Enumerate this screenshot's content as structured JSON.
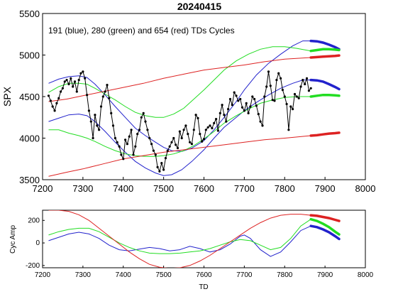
{
  "chart_data": [
    {
      "type": "line",
      "title": "20240415",
      "annotation": "191 (blue), 280 (green) and 654 (red) TDs Cycles",
      "xlabel": "",
      "ylabel": "SPX",
      "xlim": [
        7200,
        8000
      ],
      "ylim": [
        3500,
        5500
      ],
      "xticks": [
        "7200",
        "7300",
        "7400",
        "7500",
        "7600",
        "7700",
        "7800",
        "7900",
        "8000"
      ],
      "yticks": [
        "3500",
        "4000",
        "4500",
        "5000",
        "5500"
      ],
      "grid": false,
      "price": {
        "color": "#000000",
        "x": [
          7215,
          7220,
          7225,
          7230,
          7235,
          7240,
          7245,
          7250,
          7255,
          7260,
          7265,
          7270,
          7275,
          7280,
          7285,
          7290,
          7295,
          7300,
          7305,
          7310,
          7315,
          7320,
          7325,
          7330,
          7335,
          7340,
          7345,
          7350,
          7355,
          7360,
          7365,
          7370,
          7375,
          7380,
          7385,
          7390,
          7395,
          7400,
          7405,
          7410,
          7415,
          7420,
          7425,
          7430,
          7435,
          7440,
          7445,
          7450,
          7455,
          7460,
          7465,
          7470,
          7475,
          7480,
          7485,
          7490,
          7495,
          7500,
          7505,
          7510,
          7515,
          7520,
          7525,
          7530,
          7535,
          7540,
          7545,
          7550,
          7555,
          7560,
          7565,
          7570,
          7575,
          7580,
          7585,
          7590,
          7595,
          7600,
          7605,
          7610,
          7615,
          7620,
          7625,
          7630,
          7635,
          7640,
          7645,
          7650,
          7655,
          7660,
          7665,
          7670,
          7675,
          7680,
          7685,
          7690,
          7695,
          7700,
          7705,
          7710,
          7715,
          7720,
          7725,
          7730,
          7735,
          7740,
          7745,
          7750,
          7755,
          7760,
          7765,
          7770,
          7775,
          7780,
          7785,
          7790,
          7795,
          7800,
          7805,
          7810,
          7815,
          7820,
          7825,
          7830,
          7835,
          7840,
          7845,
          7850,
          7855,
          7860,
          7865
        ],
        "y": [
          4510,
          4450,
          4380,
          4330,
          4420,
          4480,
          4560,
          4600,
          4680,
          4700,
          4650,
          4720,
          4620,
          4680,
          4560,
          4700,
          4780,
          4800,
          4720,
          4520,
          4330,
          4200,
          4000,
          4280,
          4150,
          4100,
          4380,
          4500,
          4560,
          4640,
          4480,
          4300,
          4150,
          4000,
          3950,
          3900,
          3800,
          3750,
          3980,
          3930,
          4020,
          4100,
          3800,
          3900,
          4050,
          4100,
          4250,
          4300,
          4200,
          4100,
          4000,
          3930,
          3850,
          3800,
          3650,
          3600,
          3700,
          3620,
          3760,
          3850,
          3900,
          3950,
          4000,
          3920,
          3880,
          4080,
          4000,
          4100,
          4150,
          4050,
          3950,
          3930,
          4100,
          4280,
          4240,
          4050,
          3960,
          3990,
          4100,
          4130,
          4150,
          4120,
          4180,
          4230,
          4090,
          4300,
          4400,
          4280,
          4200,
          4350,
          4470,
          4400,
          4550,
          4510,
          4450,
          4470,
          4370,
          4330,
          4420,
          4300,
          4380,
          4500,
          4470,
          4390,
          4290,
          4200,
          4150,
          4500,
          4620,
          4800,
          4630,
          4460,
          4450,
          4700,
          4780,
          4720,
          4580,
          4500,
          4410,
          4100,
          4380,
          4350,
          4530,
          4500,
          4480,
          4620,
          4700,
          4650,
          4720,
          4570,
          4600
        ]
      },
      "series": [
        {
          "color": "#2222cc",
          "x": [
            7215,
            7240,
            7265,
            7290,
            7310,
            7330,
            7355,
            7380,
            7405,
            7430,
            7455,
            7480,
            7500,
            7520,
            7545,
            7570,
            7600,
            7625,
            7650,
            7680,
            7700,
            7730,
            7760,
            7790,
            7820,
            7845,
            7865
          ],
          "y": [
            4660,
            4710,
            4740,
            4750,
            4730,
            4650,
            4520,
            4380,
            4250,
            4120,
            4030,
            3950,
            3890,
            3850,
            3840,
            3880,
            3970,
            4100,
            4250,
            4440,
            4580,
            4760,
            4900,
            5010,
            5110,
            5170,
            5170
          ]
        },
        {
          "color": "#2222cc",
          "x": [
            7215,
            7240,
            7265,
            7290,
            7310,
            7330,
            7355,
            7380,
            7405,
            7430,
            7455,
            7480,
            7500,
            7520,
            7545,
            7570,
            7600,
            7625,
            7650,
            7680,
            7700,
            7730,
            7760,
            7790,
            7820,
            7845,
            7865
          ],
          "y": [
            4200,
            4240,
            4280,
            4290,
            4270,
            4200,
            4080,
            3950,
            3830,
            3720,
            3640,
            3580,
            3550,
            3560,
            3620,
            3720,
            3860,
            4000,
            4130,
            4250,
            4330,
            4430,
            4520,
            4600,
            4660,
            4700,
            4700
          ]
        },
        {
          "color": "#22dd22",
          "x": [
            7215,
            7240,
            7265,
            7290,
            7310,
            7330,
            7355,
            7380,
            7405,
            7430,
            7455,
            7480,
            7500,
            7525,
            7550,
            7575,
            7600,
            7625,
            7650,
            7680,
            7710,
            7740,
            7770,
            7800,
            7830,
            7865
          ],
          "y": [
            4550,
            4620,
            4660,
            4660,
            4650,
            4600,
            4530,
            4460,
            4380,
            4310,
            4270,
            4250,
            4250,
            4290,
            4360,
            4470,
            4580,
            4700,
            4820,
            4930,
            5010,
            5070,
            5100,
            5100,
            5080,
            5050
          ]
        },
        {
          "color": "#22dd22",
          "x": [
            7215,
            7240,
            7265,
            7290,
            7310,
            7330,
            7355,
            7380,
            7405,
            7430,
            7455,
            7480,
            7500,
            7525,
            7550,
            7575,
            7600,
            7625,
            7650,
            7680,
            7710,
            7740,
            7770,
            7800,
            7830,
            7865
          ],
          "y": [
            4100,
            4100,
            4060,
            4030,
            4000,
            3960,
            3900,
            3850,
            3810,
            3790,
            3780,
            3780,
            3790,
            3810,
            3850,
            3910,
            3990,
            4080,
            4180,
            4270,
            4350,
            4420,
            4460,
            4490,
            4500,
            4500
          ]
        },
        {
          "color": "#dd2222",
          "x": [
            7215,
            7260,
            7300,
            7350,
            7400,
            7450,
            7500,
            7550,
            7600,
            7650,
            7700,
            7750,
            7800,
            7865
          ],
          "y": [
            4440,
            4470,
            4510,
            4560,
            4610,
            4660,
            4720,
            4770,
            4820,
            4850,
            4880,
            4920,
            4950,
            4970
          ]
        },
        {
          "color": "#dd2222",
          "x": [
            7215,
            7260,
            7300,
            7350,
            7400,
            7450,
            7500,
            7550,
            7600,
            7650,
            7700,
            7750,
            7800,
            7865
          ],
          "y": [
            3540,
            3590,
            3630,
            3690,
            3750,
            3790,
            3830,
            3860,
            3890,
            3920,
            3950,
            3980,
            4000,
            4030
          ]
        }
      ],
      "projections": [
        {
          "color": "#2222cc",
          "x": [
            7865,
            7880,
            7895,
            7910,
            7925,
            7935
          ],
          "y": [
            5170,
            5165,
            5150,
            5125,
            5095,
            5070
          ]
        },
        {
          "color": "#2222cc",
          "x": [
            7865,
            7880,
            7895,
            7910,
            7925,
            7935
          ],
          "y": [
            4700,
            4695,
            4680,
            4650,
            4615,
            4590
          ]
        },
        {
          "color": "#22dd22",
          "x": [
            7865,
            7880,
            7895,
            7910,
            7925,
            7935
          ],
          "y": [
            5050,
            5060,
            5070,
            5070,
            5065,
            5060
          ]
        },
        {
          "color": "#22dd22",
          "x": [
            7865,
            7880,
            7895,
            7910,
            7925,
            7935
          ],
          "y": [
            4500,
            4510,
            4520,
            4520,
            4515,
            4510
          ]
        },
        {
          "color": "#dd2222",
          "x": [
            7865,
            7880,
            7895,
            7910,
            7925,
            7935
          ],
          "y": [
            4970,
            4975,
            4980,
            4985,
            4990,
            4995
          ]
        },
        {
          "color": "#dd2222",
          "x": [
            7865,
            7880,
            7895,
            7910,
            7925,
            7935
          ],
          "y": [
            4030,
            4035,
            4045,
            4055,
            4060,
            4065
          ]
        }
      ]
    },
    {
      "type": "line",
      "title": "",
      "xlabel": "TD",
      "ylabel": "Cyc Amp",
      "xlim": [
        7200,
        8000
      ],
      "ylim": [
        -220,
        290
      ],
      "xticks": [
        "7200",
        "7300",
        "7400",
        "7500",
        "7600",
        "7700",
        "7800",
        "7900",
        "8000"
      ],
      "yticks": [
        "-200",
        "0",
        "200"
      ],
      "grid": false,
      "series": [
        {
          "color": "#2222cc",
          "x": [
            7215,
            7240,
            7265,
            7290,
            7315,
            7340,
            7365,
            7390,
            7415,
            7440,
            7465,
            7490,
            7515,
            7540,
            7565,
            7590,
            7615,
            7640,
            7665,
            7690,
            7700,
            7715,
            7740,
            7765,
            7790,
            7815,
            7840,
            7865
          ],
          "y": [
            20,
            50,
            80,
            95,
            80,
            40,
            -20,
            -60,
            -70,
            -55,
            -40,
            -50,
            -70,
            -60,
            -30,
            -50,
            -80,
            -60,
            -10,
            60,
            70,
            40,
            -60,
            -120,
            -80,
            10,
            110,
            150
          ]
        },
        {
          "color": "#22dd22",
          "x": [
            7215,
            7240,
            7265,
            7290,
            7315,
            7340,
            7365,
            7390,
            7415,
            7440,
            7465,
            7490,
            7515,
            7540,
            7565,
            7590,
            7615,
            7640,
            7665,
            7690,
            7715,
            7740,
            7765,
            7790,
            7815,
            7840,
            7865
          ],
          "y": [
            70,
            100,
            120,
            130,
            130,
            100,
            50,
            0,
            -40,
            -70,
            -90,
            -95,
            -95,
            -90,
            -80,
            -70,
            -50,
            -20,
            10,
            30,
            20,
            -20,
            -60,
            -40,
            40,
            150,
            210
          ]
        },
        {
          "color": "#dd2222",
          "x": [
            7215,
            7240,
            7265,
            7290,
            7315,
            7340,
            7365,
            7390,
            7415,
            7440,
            7465,
            7490,
            7515,
            7540,
            7565,
            7590,
            7615,
            7640,
            7665,
            7690,
            7715,
            7740,
            7765,
            7790,
            7815,
            7840,
            7865
          ],
          "y": [
            290,
            290,
            280,
            250,
            200,
            130,
            60,
            -10,
            -80,
            -140,
            -190,
            -215,
            -225,
            -220,
            -200,
            -160,
            -110,
            -50,
            10,
            70,
            130,
            180,
            220,
            245,
            255,
            255,
            245
          ]
        }
      ],
      "projections": [
        {
          "color": "#2222cc",
          "x": [
            7865,
            7880,
            7895,
            7910,
            7925,
            7935
          ],
          "y": [
            150,
            140,
            120,
            95,
            60,
            35
          ]
        },
        {
          "color": "#22dd22",
          "x": [
            7865,
            7880,
            7895,
            7910,
            7925,
            7935
          ],
          "y": [
            210,
            195,
            170,
            140,
            100,
            75
          ]
        },
        {
          "color": "#dd2222",
          "x": [
            7865,
            7880,
            7895,
            7910,
            7925,
            7935
          ],
          "y": [
            245,
            240,
            230,
            220,
            205,
            195
          ]
        }
      ]
    }
  ]
}
